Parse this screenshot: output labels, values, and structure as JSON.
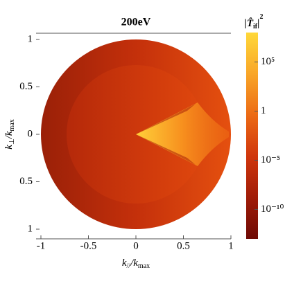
{
  "chart_data": {
    "type": "density",
    "title": "200eV",
    "xlabel": [
      "k",
      "//",
      "/k",
      "max"
    ],
    "ylabel": [
      "k",
      "⊥",
      "/k",
      "max"
    ],
    "colorbar_label": [
      "|",
      "T̂",
      "if",
      "|",
      "2"
    ],
    "xlim": [
      -1,
      1
    ],
    "ylim": [
      -1,
      1
    ],
    "xticks": [
      -1,
      -0.5,
      0,
      0.5,
      1
    ],
    "yticks": [
      {
        "value": -1,
        "label": "1"
      },
      {
        "value": -0.5,
        "label": "0.5"
      },
      0,
      0.5,
      1
    ],
    "colorbar": {
      "scale": "log",
      "lim": [
        1e-13,
        100000000.0
      ],
      "ticks": [
        {
          "value": 100000,
          "label": "10⁵"
        },
        1,
        {
          "value": 1e-05,
          "label": "10⁻⁵"
        },
        {
          "value": 1e-10,
          "label": "10⁻¹⁰"
        }
      ],
      "colors": [
        "#6e0a05",
        "#a01c08",
        "#d0360c",
        "#ec6a14",
        "#f9a628",
        "#ffd83a"
      ]
    }
  }
}
